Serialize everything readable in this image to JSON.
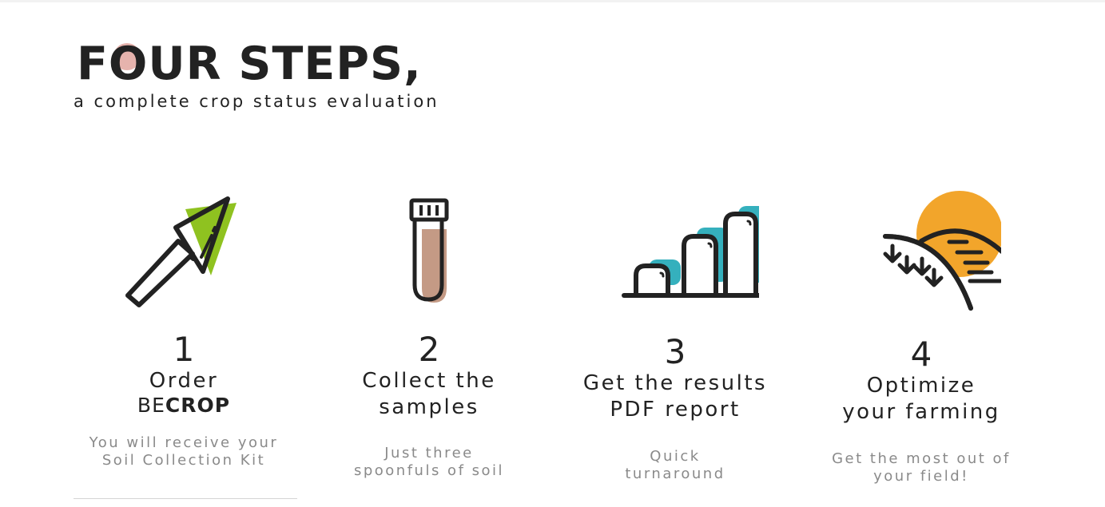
{
  "header": {
    "title": "FOUR STEPS,",
    "subtitle": "a complete crop status evaluation"
  },
  "steps": [
    {
      "number": "1",
      "label": "Order",
      "brand_light": "BE",
      "brand_bold": "CROP",
      "desc1": "You will receive your",
      "desc2": "Soil Collection Kit",
      "icon": "trowel-icon"
    },
    {
      "number": "2",
      "label1": "Collect the",
      "label2": "samples",
      "desc1": "Just three",
      "desc2": "spoonfuls of soil",
      "icon": "test-tube-icon"
    },
    {
      "number": "3",
      "label1": "Get the results",
      "label2": "PDF report",
      "desc1": "Quick",
      "desc2": "turnaround",
      "icon": "bar-chart-icon"
    },
    {
      "number": "4",
      "label1": "Optimize",
      "label2": "your farming",
      "desc1": "Get the most out of",
      "desc2": "your field!",
      "icon": "field-sun-icon"
    }
  ],
  "colors": {
    "green": "#8fc220",
    "rose": "#c49a85",
    "teal": "#35b0bd",
    "orange": "#f2a52b",
    "ink": "#222222",
    "muted": "#8a8a8a"
  }
}
